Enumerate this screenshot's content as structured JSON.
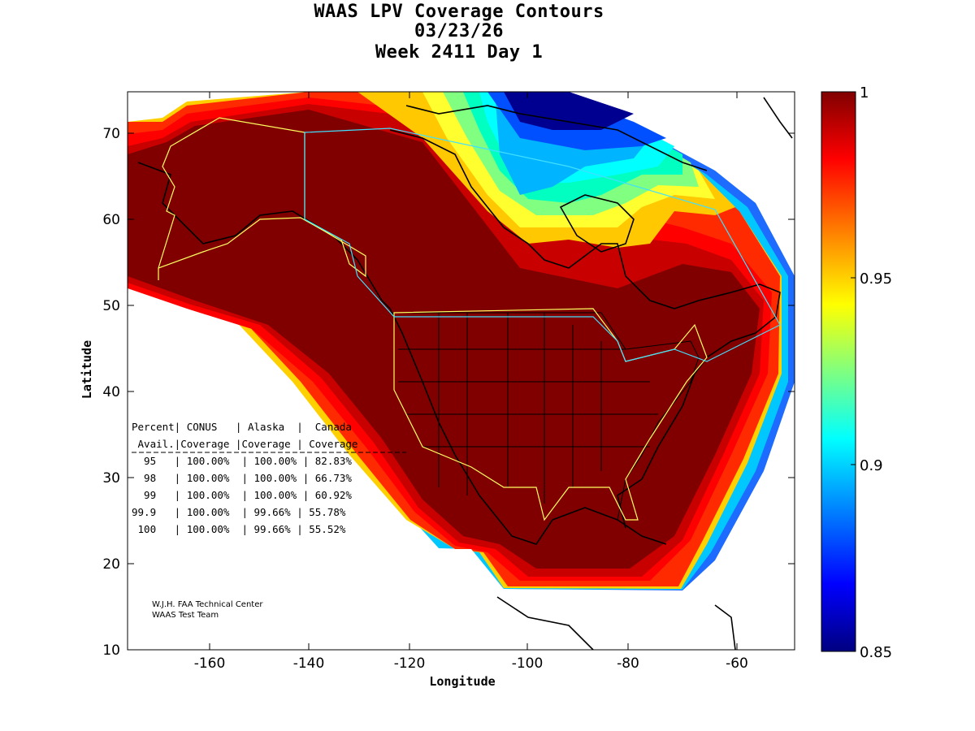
{
  "header": {
    "title": "WAAS LPV Coverage Contours",
    "date": "03/23/26",
    "week_day": "Week 2411 Day 1"
  },
  "axes": {
    "xlabel": "Longitude",
    "ylabel": "Latitude",
    "xticks": [
      "-160",
      "-140",
      "-120",
      "-100",
      "-80",
      "-60"
    ],
    "yticks": [
      "10",
      "20",
      "30",
      "40",
      "50",
      "60",
      "70"
    ]
  },
  "colorbar": {
    "labels": [
      "1",
      "0.95",
      "0.9",
      "0.85"
    ],
    "colors": [
      "#800000",
      "#ff0000",
      "#ffff00",
      "#00ffff",
      "#0000ff",
      "#000080"
    ]
  },
  "table": {
    "header1": "Percent| CONUS   | Alaska  |  Canada",
    "header2": " Avail.|Coverage |Coverage | Coverage",
    "rows": [
      "  95   | 100.00%  | 100.00% | 82.83%",
      "  98   | 100.00%  | 100.00% | 66.73%",
      "  99   | 100.00%  | 100.00% | 60.92%",
      "99.9   | 100.00%  | 99.66% | 55.78%",
      " 100   | 100.00%  | 99.66% | 55.52%"
    ]
  },
  "credits": {
    "line1": "W.J.H. FAA Technical Center",
    "line2": "WAAS Test Team"
  },
  "chart_data": {
    "type": "heatmap",
    "title": "WAAS LPV Coverage Contours",
    "xlabel": "Longitude",
    "ylabel": "Latitude",
    "xlim": [
      -175,
      -50
    ],
    "ylim": [
      10,
      75
    ],
    "clim": [
      0.85,
      1
    ],
    "colorbar_ticks": [
      1,
      0.95,
      0.9,
      0.85
    ],
    "colormap": "jet",
    "coverage_table": {
      "columns": [
        "Percent Avail.",
        "CONUS Coverage",
        "Alaska Coverage",
        "Canada Coverage"
      ],
      "rows": [
        [
          "95",
          "100.00%",
          "100.00%",
          "82.83%"
        ],
        [
          "98",
          "100.00%",
          "100.00%",
          "66.73%"
        ],
        [
          "99",
          "100.00%",
          "100.00%",
          "60.92%"
        ],
        [
          "99.9",
          "100.00%",
          "99.66%",
          "55.78%"
        ],
        [
          "100",
          "100.00%",
          "99.66%",
          "55.52%"
        ]
      ]
    }
  }
}
